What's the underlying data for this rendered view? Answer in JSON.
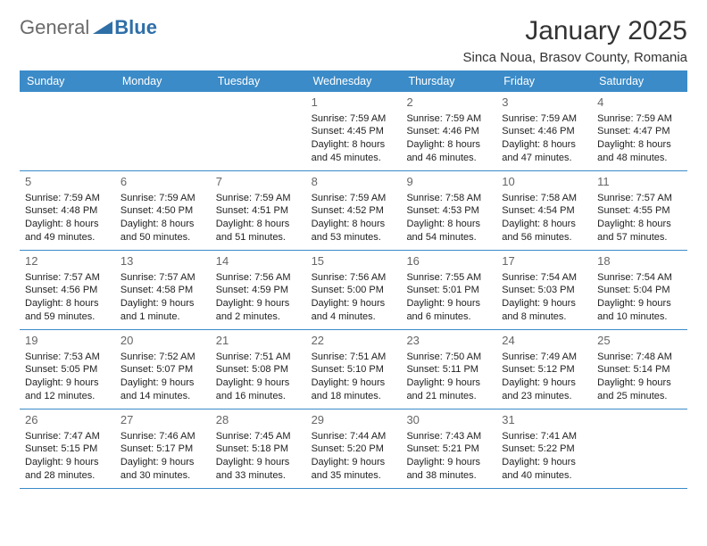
{
  "brand": {
    "part1": "General",
    "part2": "Blue"
  },
  "title": "January 2025",
  "subtitle": "Sinca Noua, Brasov County, Romania",
  "colors": {
    "header_bg": "#3b8bc8",
    "header_text": "#ffffff",
    "rule": "#3b8bc8",
    "logo_gray": "#6a6a6a",
    "logo_blue": "#2f6fa8",
    "text": "#333333",
    "daynum": "#666666",
    "bg": "#ffffff"
  },
  "typography": {
    "title_fontsize": 30,
    "subtitle_fontsize": 15,
    "dayheader_fontsize": 12.5,
    "cell_fontsize": 11,
    "daynum_fontsize": 13
  },
  "day_names": [
    "Sunday",
    "Monday",
    "Tuesday",
    "Wednesday",
    "Thursday",
    "Friday",
    "Saturday"
  ],
  "weeks": [
    [
      {},
      {},
      {},
      {
        "n": "1",
        "sr": "Sunrise: 7:59 AM",
        "ss": "Sunset: 4:45 PM",
        "d1": "Daylight: 8 hours",
        "d2": "and 45 minutes."
      },
      {
        "n": "2",
        "sr": "Sunrise: 7:59 AM",
        "ss": "Sunset: 4:46 PM",
        "d1": "Daylight: 8 hours",
        "d2": "and 46 minutes."
      },
      {
        "n": "3",
        "sr": "Sunrise: 7:59 AM",
        "ss": "Sunset: 4:46 PM",
        "d1": "Daylight: 8 hours",
        "d2": "and 47 minutes."
      },
      {
        "n": "4",
        "sr": "Sunrise: 7:59 AM",
        "ss": "Sunset: 4:47 PM",
        "d1": "Daylight: 8 hours",
        "d2": "and 48 minutes."
      }
    ],
    [
      {
        "n": "5",
        "sr": "Sunrise: 7:59 AM",
        "ss": "Sunset: 4:48 PM",
        "d1": "Daylight: 8 hours",
        "d2": "and 49 minutes."
      },
      {
        "n": "6",
        "sr": "Sunrise: 7:59 AM",
        "ss": "Sunset: 4:50 PM",
        "d1": "Daylight: 8 hours",
        "d2": "and 50 minutes."
      },
      {
        "n": "7",
        "sr": "Sunrise: 7:59 AM",
        "ss": "Sunset: 4:51 PM",
        "d1": "Daylight: 8 hours",
        "d2": "and 51 minutes."
      },
      {
        "n": "8",
        "sr": "Sunrise: 7:59 AM",
        "ss": "Sunset: 4:52 PM",
        "d1": "Daylight: 8 hours",
        "d2": "and 53 minutes."
      },
      {
        "n": "9",
        "sr": "Sunrise: 7:58 AM",
        "ss": "Sunset: 4:53 PM",
        "d1": "Daylight: 8 hours",
        "d2": "and 54 minutes."
      },
      {
        "n": "10",
        "sr": "Sunrise: 7:58 AM",
        "ss": "Sunset: 4:54 PM",
        "d1": "Daylight: 8 hours",
        "d2": "and 56 minutes."
      },
      {
        "n": "11",
        "sr": "Sunrise: 7:57 AM",
        "ss": "Sunset: 4:55 PM",
        "d1": "Daylight: 8 hours",
        "d2": "and 57 minutes."
      }
    ],
    [
      {
        "n": "12",
        "sr": "Sunrise: 7:57 AM",
        "ss": "Sunset: 4:56 PM",
        "d1": "Daylight: 8 hours",
        "d2": "and 59 minutes."
      },
      {
        "n": "13",
        "sr": "Sunrise: 7:57 AM",
        "ss": "Sunset: 4:58 PM",
        "d1": "Daylight: 9 hours",
        "d2": "and 1 minute."
      },
      {
        "n": "14",
        "sr": "Sunrise: 7:56 AM",
        "ss": "Sunset: 4:59 PM",
        "d1": "Daylight: 9 hours",
        "d2": "and 2 minutes."
      },
      {
        "n": "15",
        "sr": "Sunrise: 7:56 AM",
        "ss": "Sunset: 5:00 PM",
        "d1": "Daylight: 9 hours",
        "d2": "and 4 minutes."
      },
      {
        "n": "16",
        "sr": "Sunrise: 7:55 AM",
        "ss": "Sunset: 5:01 PM",
        "d1": "Daylight: 9 hours",
        "d2": "and 6 minutes."
      },
      {
        "n": "17",
        "sr": "Sunrise: 7:54 AM",
        "ss": "Sunset: 5:03 PM",
        "d1": "Daylight: 9 hours",
        "d2": "and 8 minutes."
      },
      {
        "n": "18",
        "sr": "Sunrise: 7:54 AM",
        "ss": "Sunset: 5:04 PM",
        "d1": "Daylight: 9 hours",
        "d2": "and 10 minutes."
      }
    ],
    [
      {
        "n": "19",
        "sr": "Sunrise: 7:53 AM",
        "ss": "Sunset: 5:05 PM",
        "d1": "Daylight: 9 hours",
        "d2": "and 12 minutes."
      },
      {
        "n": "20",
        "sr": "Sunrise: 7:52 AM",
        "ss": "Sunset: 5:07 PM",
        "d1": "Daylight: 9 hours",
        "d2": "and 14 minutes."
      },
      {
        "n": "21",
        "sr": "Sunrise: 7:51 AM",
        "ss": "Sunset: 5:08 PM",
        "d1": "Daylight: 9 hours",
        "d2": "and 16 minutes."
      },
      {
        "n": "22",
        "sr": "Sunrise: 7:51 AM",
        "ss": "Sunset: 5:10 PM",
        "d1": "Daylight: 9 hours",
        "d2": "and 18 minutes."
      },
      {
        "n": "23",
        "sr": "Sunrise: 7:50 AM",
        "ss": "Sunset: 5:11 PM",
        "d1": "Daylight: 9 hours",
        "d2": "and 21 minutes."
      },
      {
        "n": "24",
        "sr": "Sunrise: 7:49 AM",
        "ss": "Sunset: 5:12 PM",
        "d1": "Daylight: 9 hours",
        "d2": "and 23 minutes."
      },
      {
        "n": "25",
        "sr": "Sunrise: 7:48 AM",
        "ss": "Sunset: 5:14 PM",
        "d1": "Daylight: 9 hours",
        "d2": "and 25 minutes."
      }
    ],
    [
      {
        "n": "26",
        "sr": "Sunrise: 7:47 AM",
        "ss": "Sunset: 5:15 PM",
        "d1": "Daylight: 9 hours",
        "d2": "and 28 minutes."
      },
      {
        "n": "27",
        "sr": "Sunrise: 7:46 AM",
        "ss": "Sunset: 5:17 PM",
        "d1": "Daylight: 9 hours",
        "d2": "and 30 minutes."
      },
      {
        "n": "28",
        "sr": "Sunrise: 7:45 AM",
        "ss": "Sunset: 5:18 PM",
        "d1": "Daylight: 9 hours",
        "d2": "and 33 minutes."
      },
      {
        "n": "29",
        "sr": "Sunrise: 7:44 AM",
        "ss": "Sunset: 5:20 PM",
        "d1": "Daylight: 9 hours",
        "d2": "and 35 minutes."
      },
      {
        "n": "30",
        "sr": "Sunrise: 7:43 AM",
        "ss": "Sunset: 5:21 PM",
        "d1": "Daylight: 9 hours",
        "d2": "and 38 minutes."
      },
      {
        "n": "31",
        "sr": "Sunrise: 7:41 AM",
        "ss": "Sunset: 5:22 PM",
        "d1": "Daylight: 9 hours",
        "d2": "and 40 minutes."
      },
      {}
    ]
  ]
}
